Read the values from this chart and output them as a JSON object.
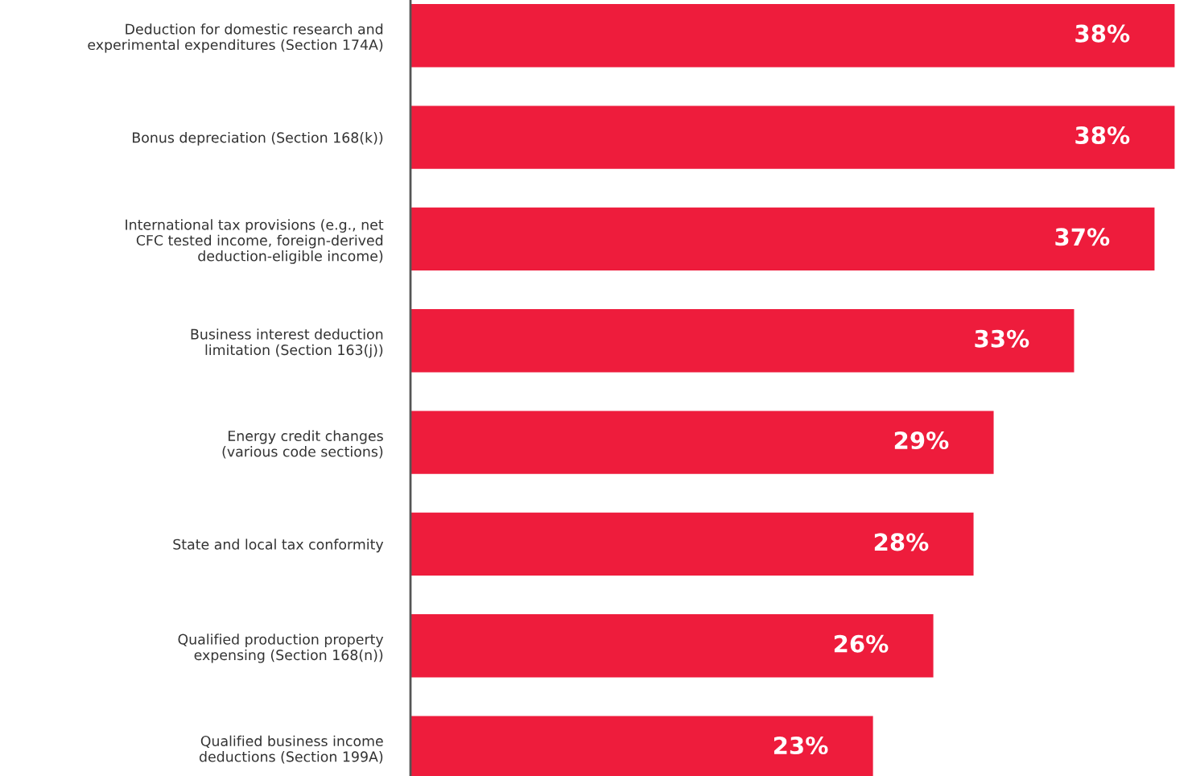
{
  "chart_data": {
    "type": "bar",
    "orientation": "horizontal",
    "categories": [
      "Deduction for domestic research and\nexperimental expenditures (Section 174A)",
      "Bonus depreciation (Section 168(k))",
      "International tax provisions (e.g., net\nCFC tested income, foreign-derived\ndeduction-eligible income)",
      "Business interest deduction\nlimitation (Section 163(j))",
      "Energy credit changes\n(various code sections)",
      "State and local tax conformity",
      "Qualified production property\nexpensing (Section 168(n))",
      "Qualified business income\ndeductions (Section 199A)"
    ],
    "values": [
      38,
      38,
      37,
      33,
      29,
      28,
      26,
      23
    ],
    "value_labels": [
      "38%",
      "38%",
      "37%",
      "33%",
      "29%",
      "28%",
      "26%",
      "23%"
    ],
    "color": "#ee1c3c",
    "tick_labels": "y",
    "grid": false,
    "legend": false
  }
}
